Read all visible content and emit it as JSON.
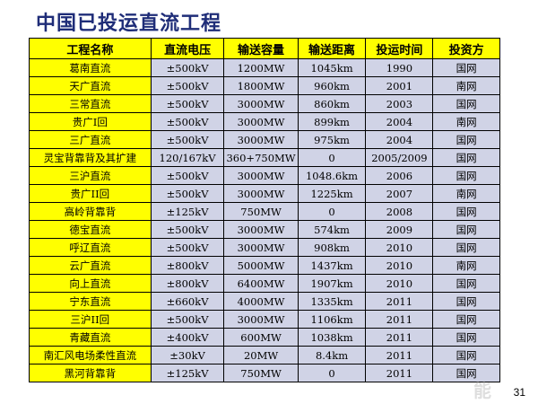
{
  "title": "中国已投运直流工程",
  "columns": [
    "工程名称",
    "直流电压",
    "输送容量",
    "输送距离",
    "投运时间",
    "投资方"
  ],
  "rows": [
    [
      "葛南直流",
      "±500kV",
      "1200MW",
      "1045km",
      "1990",
      "国网"
    ],
    [
      "天广直流",
      "±500kV",
      "1800MW",
      "960km",
      "2001",
      "南网"
    ],
    [
      "三常直流",
      "±500kV",
      "3000MW",
      "860km",
      "2003",
      "国网"
    ],
    [
      "贵广I回",
      "±500kV",
      "3000MW",
      "899km",
      "2004",
      "南网"
    ],
    [
      "三广直流",
      "±500kV",
      "3000MW",
      "975km",
      "2004",
      "国网"
    ],
    [
      "灵宝背靠背及其扩建",
      "120/167kV",
      "360+750MW",
      "0",
      "2005/2009",
      "国网"
    ],
    [
      "三沪直流",
      "±500kV",
      "3000MW",
      "1048.6km",
      "2006",
      "国网"
    ],
    [
      "贵广II回",
      "±500kV",
      "3000MW",
      "1225km",
      "2007",
      "南网"
    ],
    [
      "高岭背靠背",
      "±125kV",
      "750MW",
      "0",
      "2008",
      "国网"
    ],
    [
      "德宝直流",
      "±500kV",
      "3000MW",
      "574km",
      "2009",
      "国网"
    ],
    [
      "呼辽直流",
      "±500kV",
      "3000MW",
      "908km",
      "2010",
      "国网"
    ],
    [
      "云广直流",
      "±800kV",
      "5000MW",
      "1437km",
      "2010",
      "南网"
    ],
    [
      "向上直流",
      "±800kV",
      "6400MW",
      "1907km",
      "2010",
      "国网"
    ],
    [
      "宁东直流",
      "±660kV",
      "4000MW",
      "1335km",
      "2011",
      "国网"
    ],
    [
      "三沪II回",
      "±500kV",
      "3000MW",
      "1106km",
      "2011",
      "国网"
    ],
    [
      "青藏直流",
      "±400kV",
      "600MW",
      "1038km",
      "2011",
      "国网"
    ],
    [
      "南汇风电场柔性直流",
      "±30kV",
      "20MW",
      "8.4km",
      "2011",
      "国网"
    ],
    [
      "黑河背靠背",
      "±125kV",
      "750MW",
      "0",
      "2011",
      "国网"
    ]
  ],
  "page_number": "31",
  "colors": {
    "header_bg": "#ffff00",
    "name_bg": "#ffff00",
    "cell_bg": "#d0d3e6",
    "title": "#1f2d78"
  }
}
